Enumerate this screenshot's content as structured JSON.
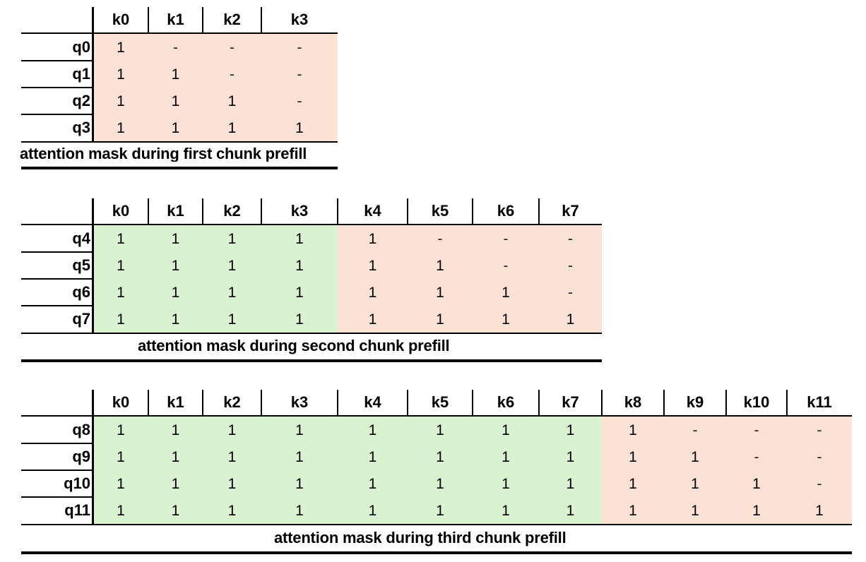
{
  "colors": {
    "past_chunk": "#d9f2d0",
    "current_chunk": "#fbe2d5"
  },
  "tables": [
    {
      "columns": [
        "k0",
        "k1",
        "k2",
        "k3"
      ],
      "rows": [
        {
          "label": "q0",
          "cells": [
            "1",
            "-",
            "-",
            "-"
          ]
        },
        {
          "label": "q1",
          "cells": [
            "1",
            "1",
            "-",
            "-"
          ]
        },
        {
          "label": "q2",
          "cells": [
            "1",
            "1",
            "1",
            "-"
          ]
        },
        {
          "label": "q3",
          "cells": [
            "1",
            "1",
            "1",
            "1"
          ]
        }
      ],
      "past_columns": 0,
      "caption": "attention mask during first chunk prefill"
    },
    {
      "columns": [
        "k0",
        "k1",
        "k2",
        "k3",
        "k4",
        "k5",
        "k6",
        "k7"
      ],
      "rows": [
        {
          "label": "q4",
          "cells": [
            "1",
            "1",
            "1",
            "1",
            "1",
            "-",
            "-",
            "-"
          ]
        },
        {
          "label": "q5",
          "cells": [
            "1",
            "1",
            "1",
            "1",
            "1",
            "1",
            "-",
            "-"
          ]
        },
        {
          "label": "q6",
          "cells": [
            "1",
            "1",
            "1",
            "1",
            "1",
            "1",
            "1",
            "-"
          ]
        },
        {
          "label": "q7",
          "cells": [
            "1",
            "1",
            "1",
            "1",
            "1",
            "1",
            "1",
            "1"
          ]
        }
      ],
      "past_columns": 4,
      "caption": "attention mask during second chunk prefill"
    },
    {
      "columns": [
        "k0",
        "k1",
        "k2",
        "k3",
        "k4",
        "k5",
        "k6",
        "k7",
        "k8",
        "k9",
        "k10",
        "k11"
      ],
      "rows": [
        {
          "label": "q8",
          "cells": [
            "1",
            "1",
            "1",
            "1",
            "1",
            "1",
            "1",
            "1",
            "1",
            "-",
            "-",
            "-"
          ]
        },
        {
          "label": "q9",
          "cells": [
            "1",
            "1",
            "1",
            "1",
            "1",
            "1",
            "1",
            "1",
            "1",
            "1",
            "-",
            "-"
          ]
        },
        {
          "label": "q10",
          "cells": [
            "1",
            "1",
            "1",
            "1",
            "1",
            "1",
            "1",
            "1",
            "1",
            "1",
            "1",
            "-"
          ]
        },
        {
          "label": "q11",
          "cells": [
            "1",
            "1",
            "1",
            "1",
            "1",
            "1",
            "1",
            "1",
            "1",
            "1",
            "1",
            "1"
          ]
        }
      ],
      "past_columns": 8,
      "caption": "attention mask during third chunk prefill"
    }
  ]
}
